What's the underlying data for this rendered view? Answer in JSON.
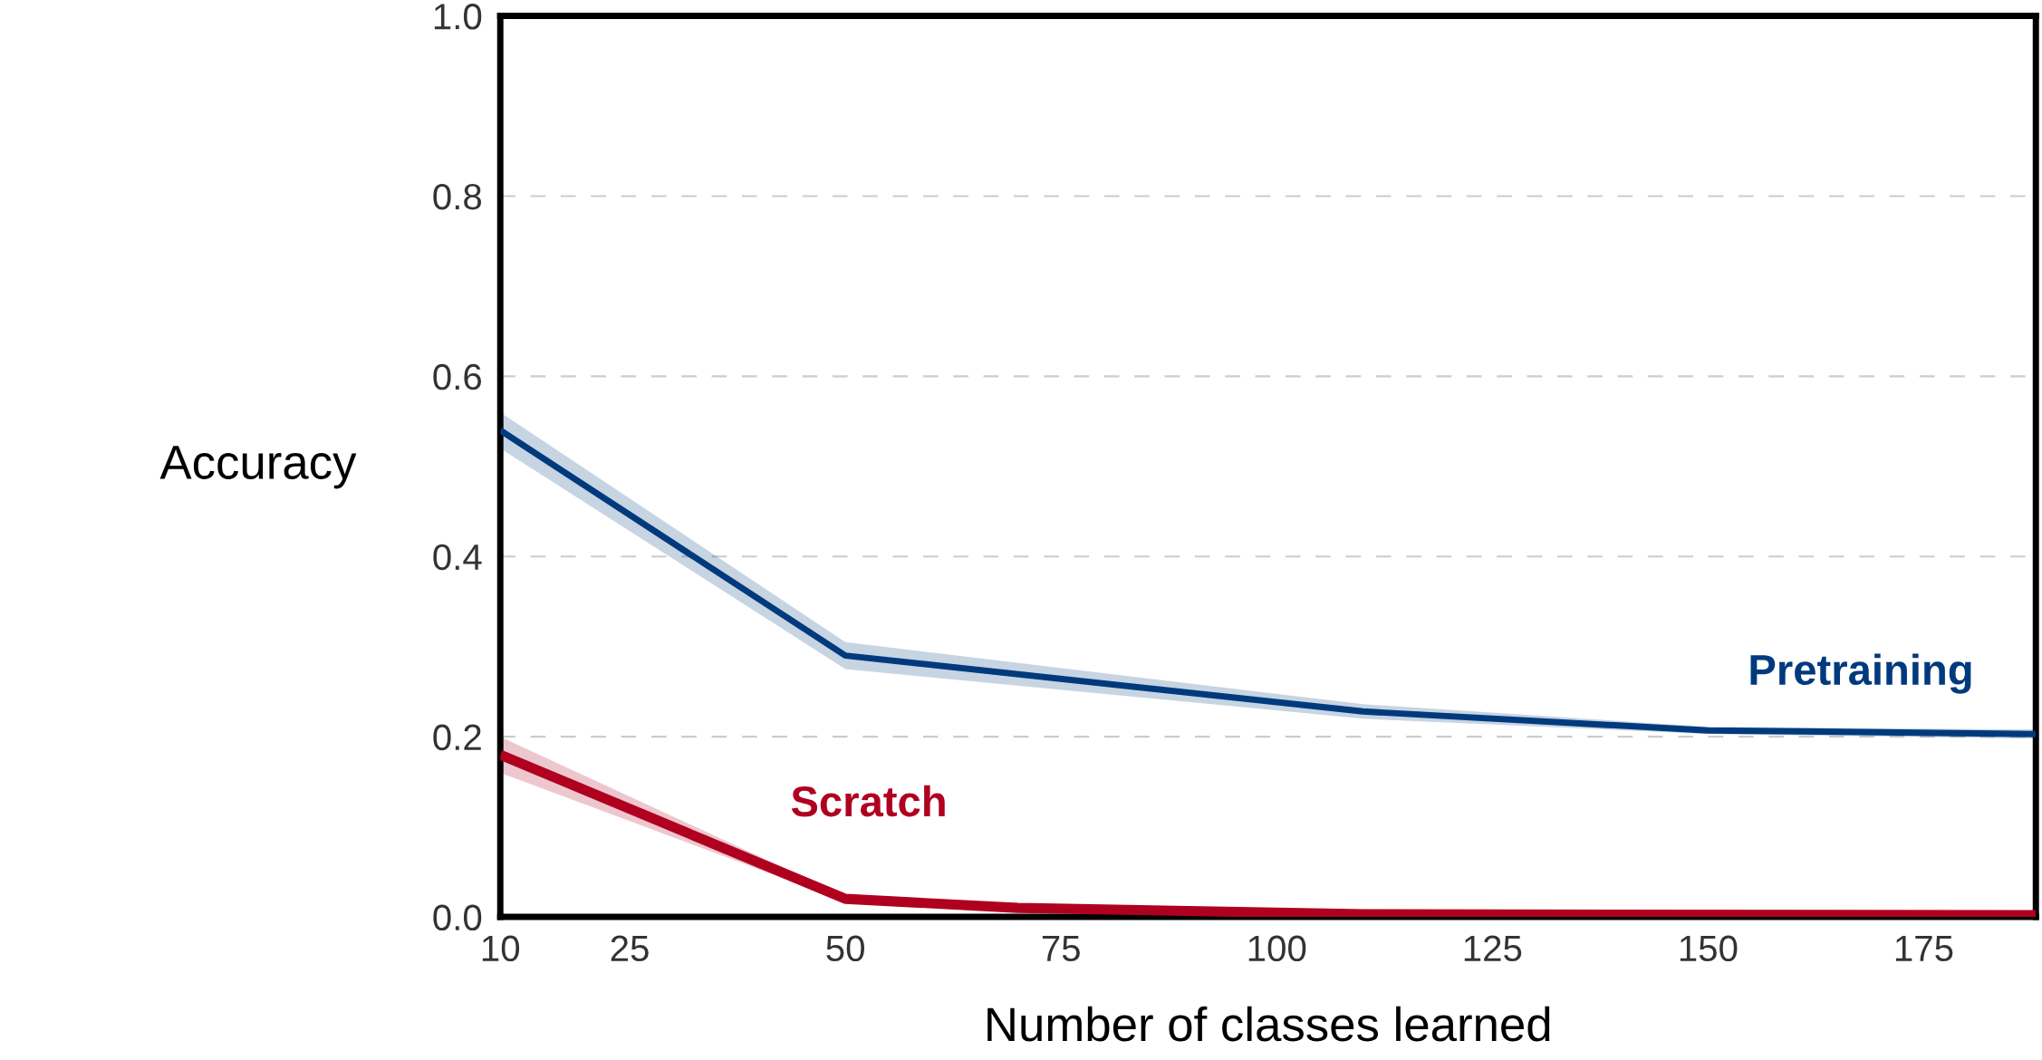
{
  "chart_data": {
    "type": "line",
    "xlabel": "Number of classes learned",
    "ylabel": "Accuracy",
    "xlim": [
      10,
      188
    ],
    "xticks": [
      10,
      25,
      50,
      75,
      100,
      125,
      150,
      175
    ],
    "ylim": [
      0,
      1.0
    ],
    "yticks": [
      {
        "value": 0,
        "label": "0.0"
      },
      0.2,
      0.4,
      0.6,
      0.8,
      {
        "value": 1,
        "label": "1.0"
      }
    ],
    "grid": "y",
    "legend": false,
    "marker": "none",
    "line_style": "solid",
    "series": [
      {
        "name": "Pretraining",
        "color": "#003a7d",
        "x": [
          10,
          50,
          110,
          150,
          188
        ],
        "values": [
          0.54,
          0.29,
          0.228,
          0.207,
          0.203
        ],
        "lower": [
          0.52,
          0.275,
          0.22,
          0.203,
          0.198
        ],
        "upper": [
          0.56,
          0.305,
          0.236,
          0.211,
          0.208
        ]
      },
      {
        "name": "Scratch",
        "color": "#b00020",
        "x": [
          10,
          50,
          70,
          110,
          188
        ],
        "values": [
          0.18,
          0.02,
          0.01,
          0.003,
          0.002
        ],
        "lower": [
          0.16,
          0.017,
          0.008,
          0.002,
          0.001
        ],
        "upper": [
          0.2,
          0.023,
          0.012,
          0.004,
          0.003
        ]
      }
    ]
  }
}
